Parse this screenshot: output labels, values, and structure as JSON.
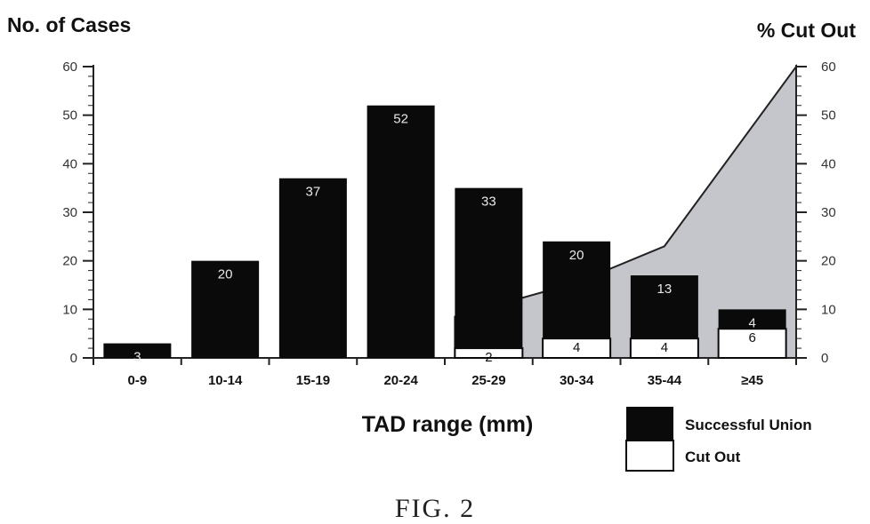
{
  "chart_data": {
    "type": "bar",
    "stacked": true,
    "caption": "FIG. 2",
    "xlabel": "TAD range (mm)",
    "ylabel_left": "No. of Cases",
    "ylabel_right": "% Cut Out",
    "ylim": [
      0,
      60
    ],
    "y_ticks": [
      0,
      10,
      20,
      30,
      40,
      50,
      60
    ],
    "categories": [
      "0-9",
      "10-14",
      "15-19",
      "20-24",
      "25-29",
      "30-34",
      "35-44",
      "≥45"
    ],
    "series": [
      {
        "name": "Successful Union",
        "values": [
          3,
          20,
          37,
          52,
          33,
          20,
          13,
          4
        ],
        "color": "#0a0a0a"
      },
      {
        "name": "Cut Out",
        "values": [
          0,
          0,
          0,
          0,
          2,
          4,
          4,
          6
        ],
        "color": "#ffffff"
      }
    ],
    "percent_cut_out": {
      "type": "area",
      "color": "#c4c6cb",
      "values": [
        0,
        0,
        0,
        0,
        8.5,
        15.5,
        23,
        60
      ],
      "ylim": [
        0,
        60
      ]
    },
    "legend": {
      "position": "bottom-right",
      "items": [
        {
          "label": "Successful Union",
          "color": "#0a0a0a"
        },
        {
          "label": "Cut Out",
          "color": "#ffffff"
        }
      ]
    }
  }
}
